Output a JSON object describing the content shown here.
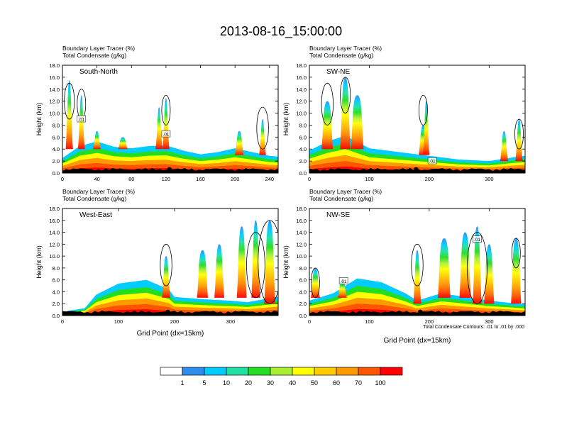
{
  "title": "2013-08-16_15:00:00",
  "colorbar": {
    "labels": [
      "1",
      "5",
      "10",
      "20",
      "30",
      "40",
      "50",
      "60",
      "70",
      "100"
    ],
    "colors": [
      "#ffffff",
      "#2d8cf0",
      "#00ccff",
      "#1fe0a0",
      "#22dd22",
      "#aaee33",
      "#ffff00",
      "#ffcc00",
      "#ff9900",
      "#ff5500",
      "#ff0000"
    ]
  },
  "footnote": "Total Condensate Contours: .01 to .01 by .000",
  "chart_data": [
    {
      "type": "heatmap",
      "panel": "South-North",
      "label": "South-North",
      "header1": "Boundary Layer Tracer    (%)",
      "header2": "Total Condensate    (g/kg)",
      "ylabel": "Height (km)",
      "xlabel": "",
      "xlim": [
        0,
        250
      ],
      "ylim": [
        0,
        18
      ],
      "xticks": [
        "0",
        "40",
        "80",
        "120",
        "160",
        "200",
        "240"
      ],
      "yticks": [
        "0.0",
        "2.0",
        "4.0",
        "6.0",
        "8.0",
        "10.0",
        "12.0",
        "14.0",
        "16.0",
        "18.0"
      ],
      "box_labels": [
        {
          "x": 22,
          "y": 9,
          "text": ".01"
        },
        {
          "x": 120,
          "y": 6.5,
          "text": ".01"
        }
      ],
      "pbl": [
        [
          0,
          2
        ],
        [
          20,
          3.6
        ],
        [
          40,
          4.2
        ],
        [
          60,
          3.5
        ],
        [
          80,
          3.3
        ],
        [
          100,
          3.6
        ],
        [
          120,
          3.7
        ],
        [
          140,
          3.0
        ],
        [
          160,
          2.5
        ],
        [
          180,
          2.8
        ],
        [
          200,
          3.3
        ],
        [
          220,
          2.8
        ],
        [
          240,
          2.3
        ],
        [
          250,
          2.2
        ]
      ],
      "plumes": [
        [
          8,
          4,
          15.5,
          3.5
        ],
        [
          22,
          4,
          13,
          3
        ],
        [
          40,
          4,
          7,
          4
        ],
        [
          70,
          4,
          6,
          6
        ],
        [
          112,
          4,
          11,
          3
        ],
        [
          120,
          4,
          12.5,
          3
        ],
        [
          205,
          3,
          7,
          5
        ],
        [
          232,
          3,
          9,
          3
        ]
      ],
      "clouds": [
        [
          8,
          9,
          15
        ],
        [
          22,
          9,
          14
        ],
        [
          120,
          8,
          13
        ],
        [
          232,
          4,
          11
        ]
      ],
      "dot_x": 124
    },
    {
      "type": "heatmap",
      "panel": "SW-NE",
      "label": "SW-NE",
      "header1": "Boundary Layer Tracer    (%)",
      "header2": "Total Condensate    (g/kg)",
      "ylabel": "Height (km)",
      "xlabel": "",
      "xlim": [
        0,
        360
      ],
      "ylim": [
        0,
        18
      ],
      "xticks": [
        "0",
        "100",
        "200",
        "300"
      ],
      "yticks": [
        "0.0",
        "2.0",
        "4.0",
        "6.0",
        "8.0",
        "10.0",
        "12.0",
        "14.0",
        "16.0",
        "18.0"
      ],
      "box_labels": [
        {
          "x": 205,
          "y": 2,
          "text": ".01"
        }
      ],
      "pbl": [
        [
          0,
          3
        ],
        [
          30,
          4.2
        ],
        [
          60,
          5
        ],
        [
          100,
          3.3
        ],
        [
          150,
          2.8
        ],
        [
          200,
          2.3
        ],
        [
          250,
          1.8
        ],
        [
          300,
          1.6
        ],
        [
          340,
          2.1
        ],
        [
          360,
          2.3
        ]
      ],
      "plumes": [
        [
          30,
          4,
          12,
          12
        ],
        [
          60,
          4,
          16,
          10
        ],
        [
          80,
          4,
          13,
          14
        ],
        [
          190,
          3,
          8,
          8
        ],
        [
          195,
          3,
          12,
          4
        ],
        [
          325,
          2,
          7,
          6
        ],
        [
          350,
          2,
          9,
          5
        ]
      ],
      "clouds": [
        [
          30,
          8,
          15
        ],
        [
          60,
          10,
          16
        ],
        [
          190,
          8,
          13
        ],
        [
          350,
          4,
          9
        ]
      ],
      "dot_x": 178
    },
    {
      "type": "heatmap",
      "panel": "West-East",
      "label": "West-East",
      "header1": "Boundary Layer Tracer    (%)",
      "header2": "Total Condensate    (g/kg)",
      "ylabel": "Height (km)",
      "xlabel": "Grid Point (dx=15km)",
      "xlim": [
        0,
        385
      ],
      "ylim": [
        0,
        18
      ],
      "xticks": [
        "0",
        "100",
        "200",
        "300"
      ],
      "yticks": [
        "0.0",
        "2.0",
        "4.0",
        "6.0",
        "8.0",
        "10.0",
        "12.0",
        "14.0",
        "16.0",
        "18.0"
      ],
      "box_labels": [],
      "pbl": [
        [
          0,
          0.5
        ],
        [
          40,
          1
        ],
        [
          60,
          2.8
        ],
        [
          100,
          4.3
        ],
        [
          150,
          4.8
        ],
        [
          190,
          3.5
        ],
        [
          200,
          2.5
        ],
        [
          250,
          2.2
        ],
        [
          300,
          2.0
        ],
        [
          330,
          1.8
        ],
        [
          360,
          2.2
        ],
        [
          385,
          2.5
        ]
      ],
      "plumes": [
        [
          185,
          3,
          10,
          7
        ],
        [
          250,
          3,
          11,
          12
        ],
        [
          280,
          3,
          12,
          10
        ],
        [
          320,
          3,
          15,
          10
        ],
        [
          345,
          3,
          16,
          8
        ],
        [
          370,
          2,
          16,
          12
        ]
      ],
      "clouds": [
        [
          185,
          5,
          12
        ],
        [
          345,
          3,
          14
        ],
        [
          370,
          2,
          16
        ]
      ],
      "dot_x": 188
    },
    {
      "type": "heatmap",
      "panel": "NW-SE",
      "label": "NW-SE",
      "header1": "Boundary Layer Tracer    (%)",
      "header2": "Total Condensate    (g/kg)",
      "ylabel": "Height (km)",
      "xlabel": "Grid Point (dx=15km)",
      "xlim": [
        0,
        360
      ],
      "ylim": [
        0,
        18
      ],
      "xticks": [
        "0",
        "100",
        "200",
        "300"
      ],
      "yticks": [
        "0.0",
        "2.0",
        "4.0",
        "6.0",
        "8.0",
        "10.0",
        "12.0",
        "14.0",
        "16.0",
        "18.0"
      ],
      "box_labels": [
        {
          "x": 57,
          "y": 5.8,
          "text": ".01"
        },
        {
          "x": 280,
          "y": 12.8,
          "text": ".01"
        }
      ],
      "pbl": [
        [
          0,
          2
        ],
        [
          40,
          3
        ],
        [
          80,
          5
        ],
        [
          120,
          4.5
        ],
        [
          160,
          3
        ],
        [
          180,
          2
        ],
        [
          220,
          3
        ],
        [
          260,
          2.5
        ],
        [
          300,
          2
        ],
        [
          360,
          1.5
        ]
      ],
      "plumes": [
        [
          10,
          3,
          8,
          8
        ],
        [
          55,
          3,
          6,
          8
        ],
        [
          180,
          2,
          11,
          6
        ],
        [
          225,
          3,
          13,
          14
        ],
        [
          260,
          3,
          14,
          12
        ],
        [
          280,
          2,
          15,
          8
        ],
        [
          300,
          2,
          12,
          10
        ],
        [
          345,
          2,
          13,
          10
        ]
      ],
      "clouds": [
        [
          10,
          3,
          8
        ],
        [
          180,
          5,
          12
        ],
        [
          280,
          2,
          14
        ],
        [
          345,
          8,
          13
        ]
      ],
      "dot_x": 185
    }
  ]
}
